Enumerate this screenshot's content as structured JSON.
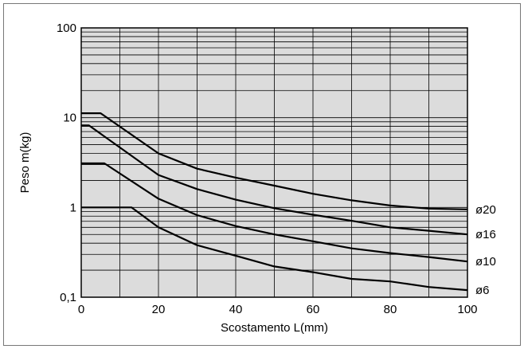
{
  "chart_data": {
    "type": "line",
    "xlabel": "Scostamento L(mm)",
    "ylabel": "Peso m(kg)",
    "xlim": [
      0,
      100
    ],
    "ylim": [
      0.1,
      100
    ],
    "yscale": "log",
    "grid": true,
    "x_ticks": [
      {
        "value": 0,
        "label": "0"
      },
      {
        "value": 20,
        "label": "20"
      },
      {
        "value": 40,
        "label": "40"
      },
      {
        "value": 60,
        "label": "60"
      },
      {
        "value": 80,
        "label": "80"
      },
      {
        "value": 100,
        "label": "100"
      }
    ],
    "y_ticks": [
      {
        "value": 0.1,
        "label": "0,1"
      },
      {
        "value": 1,
        "label": "1"
      },
      {
        "value": 10,
        "label": "10"
      },
      {
        "value": 100,
        "label": "100"
      }
    ],
    "series": [
      {
        "name": "ø20",
        "points": [
          [
            0,
            11.2
          ],
          [
            5,
            11.2
          ],
          [
            20,
            4.0
          ],
          [
            30,
            2.7
          ],
          [
            40,
            2.15
          ],
          [
            50,
            1.75
          ],
          [
            60,
            1.42
          ],
          [
            70,
            1.2
          ],
          [
            80,
            1.05
          ],
          [
            90,
            0.97
          ],
          [
            100,
            0.95
          ]
        ]
      },
      {
        "name": "ø16",
        "points": [
          [
            0,
            8.2
          ],
          [
            2,
            8.2
          ],
          [
            20,
            2.3
          ],
          [
            30,
            1.6
          ],
          [
            40,
            1.22
          ],
          [
            50,
            0.98
          ],
          [
            60,
            0.83
          ],
          [
            70,
            0.71
          ],
          [
            80,
            0.6
          ],
          [
            90,
            0.55
          ],
          [
            100,
            0.5
          ]
        ]
      },
      {
        "name": "ø10",
        "points": [
          [
            0,
            3.1
          ],
          [
            6,
            3.1
          ],
          [
            20,
            1.25
          ],
          [
            30,
            0.82
          ],
          [
            40,
            0.62
          ],
          [
            50,
            0.5
          ],
          [
            60,
            0.42
          ],
          [
            70,
            0.35
          ],
          [
            80,
            0.31
          ],
          [
            90,
            0.28
          ],
          [
            100,
            0.25
          ]
        ]
      },
      {
        "name": "ø6",
        "points": [
          [
            0,
            1.0
          ],
          [
            13,
            1.0
          ],
          [
            20,
            0.6
          ],
          [
            30,
            0.38
          ],
          [
            40,
            0.29
          ],
          [
            50,
            0.22
          ],
          [
            60,
            0.19
          ],
          [
            70,
            0.16
          ],
          [
            80,
            0.15
          ],
          [
            90,
            0.13
          ],
          [
            100,
            0.12
          ]
        ]
      }
    ]
  }
}
